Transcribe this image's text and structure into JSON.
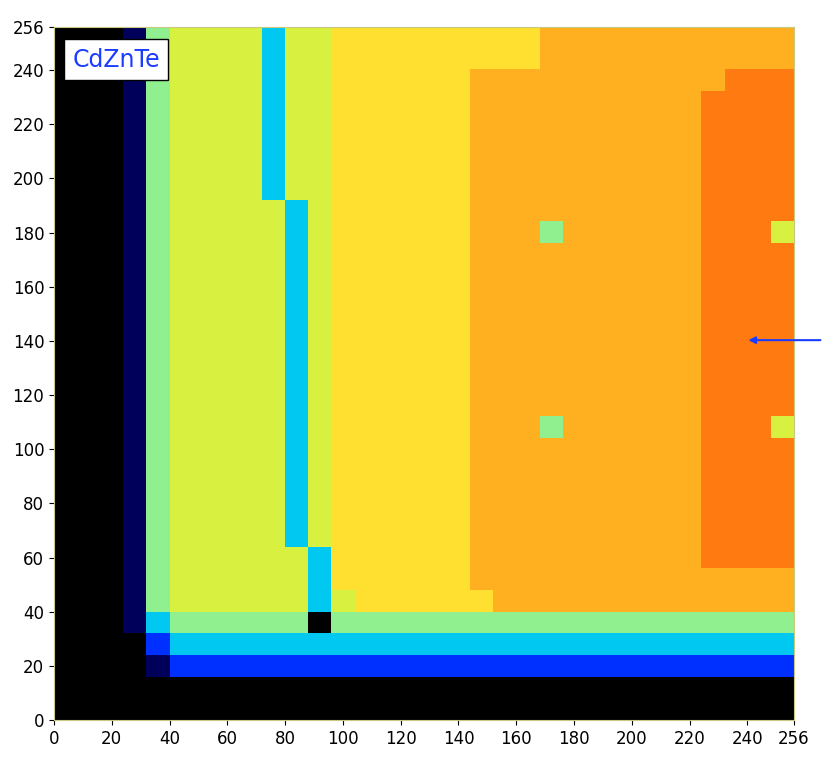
{
  "chart_data": {
    "type": "heatmap",
    "annotations": [
      "CdZnTe"
    ],
    "xlim": [
      0,
      256
    ],
    "ylim": [
      0,
      256
    ],
    "xticks": [
      0,
      20,
      40,
      60,
      80,
      100,
      120,
      140,
      160,
      180,
      200,
      220,
      240,
      256
    ],
    "yticks": [
      0,
      20,
      40,
      60,
      80,
      100,
      120,
      140,
      160,
      180,
      200,
      220,
      240,
      256
    ],
    "value_range": [
      0,
      9
    ],
    "cells": [
      [
        0,
        0,
        0,
        0,
        0,
        0,
        0,
        0,
        0,
        0,
        0,
        0,
        0,
        0,
        0,
        0,
        0,
        0,
        0,
        0,
        0,
        0,
        0,
        0,
        0,
        0,
        0,
        0,
        0,
        0,
        0,
        0
      ],
      [
        0,
        0,
        0,
        0,
        0,
        0,
        0,
        0,
        0,
        0,
        0,
        0,
        0,
        0,
        0,
        0,
        0,
        0,
        0,
        0,
        0,
        0,
        0,
        0,
        0,
        0,
        0,
        0,
        0,
        0,
        0,
        0
      ],
      [
        0,
        0,
        0,
        0,
        1,
        2,
        2,
        2,
        2,
        2,
        2,
        2,
        2,
        2,
        2,
        2,
        2,
        2,
        2,
        2,
        2,
        2,
        2,
        2,
        2,
        2,
        2,
        2,
        2,
        2,
        2,
        2
      ],
      [
        0,
        0,
        0,
        0,
        2,
        3,
        3,
        3,
        3,
        3,
        3,
        3,
        3,
        3,
        3,
        3,
        3,
        3,
        3,
        3,
        3,
        3,
        3,
        3,
        3,
        3,
        3,
        3,
        3,
        3,
        3,
        3
      ],
      [
        0,
        0,
        0,
        1,
        3,
        4,
        4,
        4,
        4,
        4,
        4,
        0,
        4,
        4,
        4,
        4,
        4,
        4,
        4,
        4,
        4,
        4,
        4,
        4,
        4,
        4,
        4,
        4,
        4,
        4,
        4,
        4
      ],
      [
        0,
        0,
        0,
        1,
        4,
        5,
        5,
        5,
        5,
        5,
        5,
        3,
        5,
        6,
        6,
        6,
        6,
        6,
        6,
        7,
        7,
        7,
        7,
        7,
        7,
        7,
        7,
        7,
        7,
        7,
        7,
        7
      ],
      [
        0,
        0,
        0,
        1,
        4,
        5,
        5,
        5,
        5,
        5,
        5,
        3,
        6,
        6,
        6,
        6,
        6,
        6,
        7,
        7,
        7,
        7,
        7,
        7,
        7,
        7,
        7,
        7,
        7,
        7,
        7,
        7
      ],
      [
        0,
        0,
        0,
        1,
        4,
        5,
        5,
        5,
        5,
        5,
        5,
        3,
        6,
        6,
        6,
        6,
        6,
        6,
        7,
        7,
        7,
        7,
        7,
        7,
        7,
        7,
        7,
        7,
        8,
        8,
        8,
        8
      ],
      [
        0,
        0,
        0,
        1,
        4,
        5,
        5,
        5,
        5,
        5,
        3,
        5,
        6,
        6,
        6,
        6,
        6,
        6,
        7,
        7,
        7,
        7,
        7,
        7,
        7,
        7,
        7,
        7,
        8,
        8,
        8,
        8
      ],
      [
        0,
        0,
        0,
        1,
        4,
        5,
        5,
        5,
        5,
        5,
        3,
        5,
        6,
        6,
        6,
        6,
        6,
        6,
        7,
        7,
        7,
        7,
        7,
        7,
        7,
        7,
        7,
        7,
        8,
        8,
        8,
        8
      ],
      [
        0,
        0,
        0,
        1,
        4,
        5,
        5,
        5,
        5,
        5,
        3,
        5,
        6,
        6,
        6,
        6,
        6,
        6,
        7,
        7,
        7,
        7,
        7,
        7,
        7,
        7,
        7,
        7,
        8,
        8,
        8,
        8
      ],
      [
        0,
        0,
        0,
        1,
        4,
        5,
        5,
        5,
        5,
        5,
        3,
        5,
        6,
        6,
        6,
        6,
        6,
        6,
        7,
        7,
        7,
        7,
        7,
        7,
        7,
        7,
        7,
        7,
        8,
        8,
        8,
        8
      ],
      [
        0,
        0,
        0,
        1,
        4,
        5,
        5,
        5,
        5,
        5,
        3,
        5,
        6,
        6,
        6,
        6,
        6,
        6,
        7,
        7,
        7,
        7,
        7,
        7,
        7,
        7,
        7,
        7,
        8,
        8,
        8,
        8
      ],
      [
        0,
        0,
        0,
        1,
        4,
        5,
        5,
        5,
        5,
        5,
        3,
        5,
        6,
        6,
        6,
        6,
        6,
        6,
        7,
        7,
        7,
        4,
        7,
        7,
        7,
        7,
        7,
        7,
        8,
        8,
        8,
        5
      ],
      [
        0,
        0,
        0,
        1,
        4,
        5,
        5,
        5,
        5,
        5,
        3,
        5,
        6,
        6,
        6,
        6,
        6,
        6,
        7,
        7,
        7,
        7,
        7,
        7,
        7,
        7,
        7,
        7,
        8,
        8,
        8,
        8
      ],
      [
        0,
        0,
        0,
        1,
        4,
        5,
        5,
        5,
        5,
        5,
        3,
        5,
        6,
        6,
        6,
        6,
        6,
        6,
        7,
        7,
        7,
        7,
        7,
        7,
        7,
        7,
        7,
        7,
        8,
        8,
        8,
        8
      ],
      [
        0,
        0,
        0,
        1,
        4,
        5,
        5,
        5,
        5,
        5,
        3,
        5,
        6,
        6,
        6,
        6,
        6,
        6,
        7,
        7,
        7,
        7,
        7,
        7,
        7,
        7,
        7,
        7,
        8,
        8,
        8,
        8
      ],
      [
        0,
        0,
        0,
        1,
        4,
        5,
        5,
        5,
        5,
        5,
        3,
        5,
        6,
        6,
        6,
        6,
        6,
        6,
        7,
        7,
        7,
        7,
        7,
        7,
        7,
        7,
        7,
        7,
        8,
        8,
        8,
        8
      ],
      [
        0,
        0,
        0,
        1,
        4,
        5,
        5,
        5,
        5,
        5,
        3,
        5,
        6,
        6,
        6,
        6,
        6,
        6,
        7,
        7,
        7,
        7,
        7,
        7,
        7,
        7,
        7,
        7,
        8,
        8,
        8,
        8
      ],
      [
        0,
        0,
        0,
        1,
        4,
        5,
        5,
        5,
        5,
        5,
        3,
        5,
        6,
        6,
        6,
        6,
        6,
        6,
        7,
        7,
        7,
        7,
        7,
        7,
        7,
        7,
        7,
        7,
        8,
        8,
        8,
        8
      ],
      [
        0,
        0,
        0,
        1,
        4,
        5,
        5,
        5,
        5,
        5,
        3,
        5,
        6,
        6,
        6,
        6,
        6,
        6,
        7,
        7,
        7,
        7,
        7,
        7,
        7,
        7,
        7,
        7,
        8,
        8,
        8,
        8
      ],
      [
        0,
        0,
        0,
        1,
        4,
        5,
        5,
        5,
        5,
        5,
        3,
        5,
        6,
        6,
        6,
        6,
        6,
        6,
        7,
        7,
        7,
        7,
        7,
        7,
        7,
        7,
        7,
        7,
        8,
        8,
        8,
        8
      ],
      [
        0,
        0,
        0,
        1,
        4,
        5,
        5,
        5,
        5,
        5,
        3,
        5,
        6,
        6,
        6,
        6,
        6,
        6,
        7,
        7,
        7,
        4,
        7,
        7,
        7,
        7,
        7,
        7,
        8,
        8,
        8,
        5
      ],
      [
        0,
        0,
        0,
        1,
        4,
        5,
        5,
        5,
        5,
        5,
        3,
        5,
        6,
        6,
        6,
        6,
        6,
        6,
        7,
        7,
        7,
        7,
        7,
        7,
        7,
        7,
        7,
        7,
        8,
        8,
        8,
        8
      ],
      [
        0,
        0,
        0,
        1,
        4,
        5,
        5,
        5,
        5,
        3,
        5,
        5,
        6,
        6,
        6,
        6,
        6,
        6,
        7,
        7,
        7,
        7,
        7,
        7,
        7,
        7,
        7,
        7,
        8,
        8,
        8,
        8
      ],
      [
        0,
        0,
        0,
        1,
        4,
        5,
        5,
        5,
        5,
        3,
        5,
        5,
        6,
        6,
        6,
        6,
        6,
        6,
        7,
        7,
        7,
        7,
        7,
        7,
        7,
        7,
        7,
        7,
        8,
        8,
        8,
        8
      ],
      [
        0,
        0,
        0,
        1,
        4,
        5,
        5,
        5,
        5,
        3,
        5,
        5,
        6,
        6,
        6,
        6,
        6,
        6,
        7,
        7,
        7,
        7,
        7,
        7,
        7,
        7,
        7,
        7,
        8,
        8,
        8,
        8
      ],
      [
        0,
        0,
        0,
        1,
        4,
        5,
        5,
        5,
        5,
        3,
        5,
        5,
        6,
        6,
        6,
        6,
        6,
        6,
        7,
        7,
        7,
        7,
        7,
        7,
        7,
        7,
        7,
        7,
        8,
        8,
        8,
        8
      ],
      [
        0,
        0,
        0,
        1,
        4,
        5,
        5,
        5,
        5,
        3,
        5,
        5,
        6,
        6,
        6,
        6,
        6,
        6,
        7,
        7,
        7,
        7,
        7,
        7,
        7,
        7,
        7,
        7,
        8,
        8,
        8,
        8
      ],
      [
        0,
        0,
        0,
        1,
        4,
        5,
        5,
        5,
        5,
        3,
        5,
        5,
        6,
        6,
        6,
        6,
        6,
        6,
        7,
        7,
        7,
        7,
        7,
        7,
        7,
        7,
        7,
        7,
        7,
        8,
        8,
        8
      ],
      [
        0,
        0,
        0,
        1,
        4,
        5,
        5,
        5,
        5,
        3,
        5,
        5,
        6,
        6,
        6,
        6,
        6,
        6,
        6,
        6,
        6,
        7,
        7,
        7,
        7,
        7,
        7,
        7,
        7,
        7,
        7,
        7
      ],
      [
        0,
        0,
        0,
        1,
        4,
        5,
        5,
        5,
        5,
        3,
        5,
        5,
        6,
        6,
        6,
        6,
        6,
        6,
        6,
        6,
        6,
        7,
        7,
        7,
        7,
        7,
        7,
        7,
        7,
        7,
        7,
        7
      ]
    ]
  }
}
